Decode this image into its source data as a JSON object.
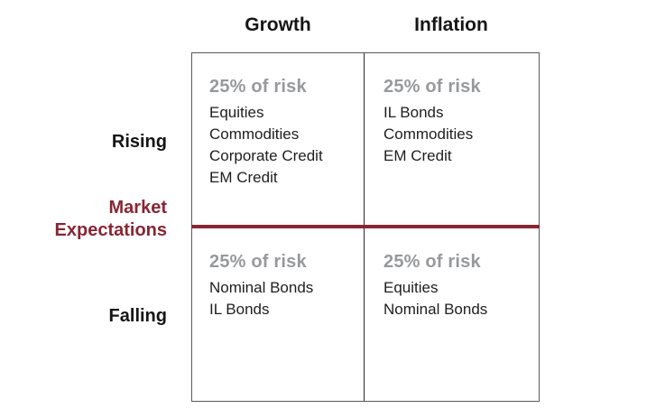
{
  "matrix": {
    "column_headers": {
      "growth": "Growth",
      "inflation": "Inflation"
    },
    "row_labels": {
      "rising": "Rising",
      "falling": "Falling"
    },
    "axis_label": {
      "line1": "Market",
      "line2": "Expectations"
    },
    "quadrants": {
      "growth_rising": {
        "risk": "25% of risk",
        "assets": [
          "Equities",
          "Commodities",
          "Corporate Credit",
          "EM Credit"
        ]
      },
      "inflation_rising": {
        "risk": "25% of risk",
        "assets": [
          "IL Bonds",
          "Commodities",
          "EM Credit"
        ]
      },
      "growth_falling": {
        "risk": "25% of risk",
        "assets": [
          "Nominal Bonds",
          "IL Bonds"
        ]
      },
      "inflation_falling": {
        "risk": "25% of risk",
        "assets": [
          "Equities",
          "Nominal Bonds"
        ]
      }
    }
  },
  "colors": {
    "accent_maroon": "#882634",
    "risk_gray": "#97999C",
    "border_gray": "#58595B",
    "divider_black": "#2B2B2D"
  }
}
